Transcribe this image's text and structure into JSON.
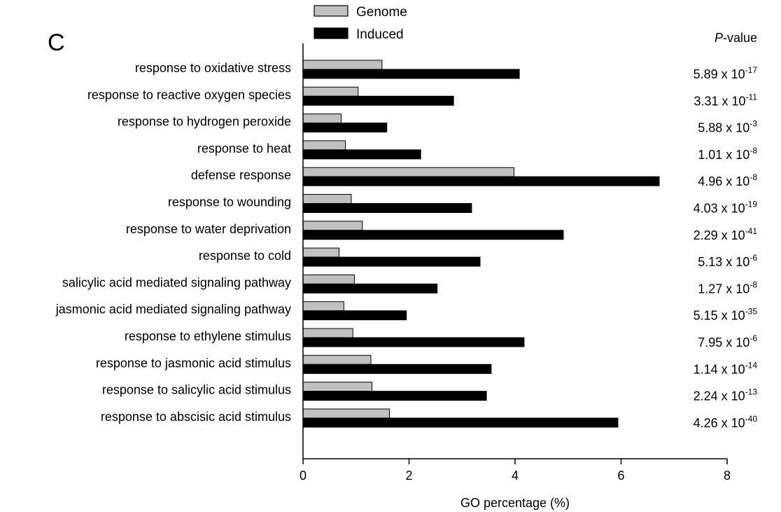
{
  "panel_label": "C",
  "pvalue_header_italic": "P",
  "pvalue_header_rest": "-value",
  "chart_data": {
    "type": "bar",
    "orientation": "horizontal",
    "xlabel": "GO percentage (%)",
    "xlim": [
      0,
      8
    ],
    "xticks": [
      "0",
      "2",
      "4",
      "6",
      "8"
    ],
    "grid": false,
    "legend_position": "top",
    "categories": [
      "response to oxidative stress",
      "response to reactive oxygen species",
      "response to hydrogen peroxide",
      "response to heat",
      "defense response",
      "response to wounding",
      "response to water deprivation",
      "response to cold",
      "salicylic acid mediated signaling pathway",
      "jasmonic acid mediated signaling pathway",
      "response to ethylene stimulus",
      "response to jasmonic acid stimulus",
      "response to salicylic acid stimulus",
      "response to abscisic acid stimulus"
    ],
    "series": [
      {
        "name": "Genome",
        "color": "#c0c0c0",
        "values": [
          1.49,
          1.04,
          0.72,
          0.8,
          3.98,
          0.91,
          1.12,
          0.68,
          0.97,
          0.77,
          0.94,
          1.28,
          1.3,
          1.63
        ]
      },
      {
        "name": "Induced",
        "color": "#000000",
        "values": [
          4.08,
          2.84,
          1.58,
          2.22,
          6.72,
          3.18,
          4.91,
          3.34,
          2.53,
          1.95,
          4.17,
          3.55,
          3.46,
          5.94
        ]
      }
    ],
    "pvalues": [
      {
        "mantissa": "5.89 x 10",
        "exponent": "-17"
      },
      {
        "mantissa": "3.31 x 10",
        "exponent": "-11"
      },
      {
        "mantissa": "5.88 x 10",
        "exponent": "-3"
      },
      {
        "mantissa": "1.01 x 10",
        "exponent": "-8"
      },
      {
        "mantissa": "4.96 x 10",
        "exponent": "-8"
      },
      {
        "mantissa": "4.03 x 10",
        "exponent": "-19"
      },
      {
        "mantissa": "2.29 x 10",
        "exponent": "-41"
      },
      {
        "mantissa": "5.13 x 10",
        "exponent": "-6"
      },
      {
        "mantissa": "1.27 x 10",
        "exponent": "-8"
      },
      {
        "mantissa": "5.15 x 10",
        "exponent": "-35"
      },
      {
        "mantissa": "7.95 x 10",
        "exponent": "-6"
      },
      {
        "mantissa": "1.14 x 10",
        "exponent": "-14"
      },
      {
        "mantissa": "2.24 x 10",
        "exponent": "-13"
      },
      {
        "mantissa": "4.26 x 10",
        "exponent": "-40"
      }
    ]
  }
}
